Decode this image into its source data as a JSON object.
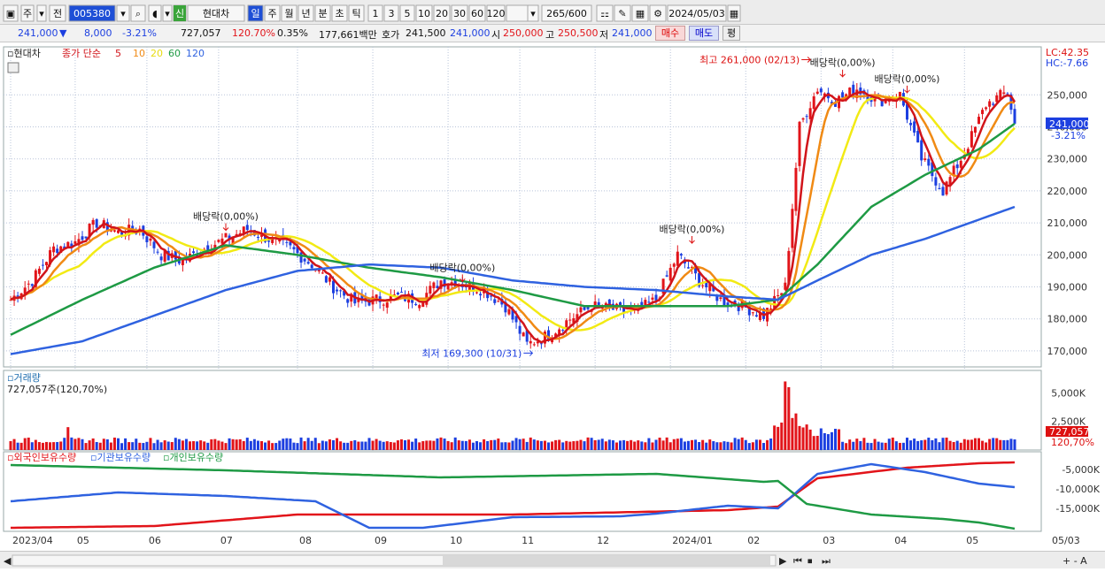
{
  "toolbar": {
    "mode": "주",
    "prev": "전",
    "code": "005380",
    "new_badge": "신",
    "name": "현대차",
    "periods": [
      {
        "label": "일",
        "selected": true
      },
      {
        "label": "주"
      },
      {
        "label": "월"
      },
      {
        "label": "년"
      },
      {
        "label": "분"
      },
      {
        "label": "초"
      },
      {
        "label": "틱"
      }
    ],
    "intervals": [
      "1",
      "3",
      "5",
      "10",
      "20",
      "30",
      "60",
      "120"
    ],
    "count": "265",
    "max_count": "/600",
    "date": "2024/05/03"
  },
  "quote": {
    "price": "241,000",
    "arrow": "▼",
    "change": "8,000",
    "change_pct": "-3.21%",
    "volume": "727,057",
    "volume_ratio": "120.70%",
    "turnover_pct": "0.35%",
    "amount": "177,661백만",
    "hoga_label": "호가",
    "ask": "241,500",
    "bid": "241,000",
    "open_label": "시",
    "open": "250,000",
    "high_label": "고",
    "high": "250,500",
    "low_label": "저",
    "low": "241,000",
    "buy_label": "매수",
    "sell_label": "매도",
    "avg_label": "평"
  },
  "colors": {
    "up": "#e2141a",
    "down": "#1c3fe0",
    "ma5": "#d1141a",
    "ma10": "#f08a14",
    "ma20": "#f2ea14",
    "ma60": "#1e9a44",
    "ma120": "#2f62e0",
    "foreign": "#e2141a",
    "inst": "#2f62e0",
    "indiv": "#1e9a44",
    "grid": "#b9c4d9"
  },
  "chart_data": [
    {
      "type": "candlestick",
      "title": "현대차",
      "legend": [
        {
          "name": "종가 단순",
          "color": "#d1141a"
        },
        {
          "name": "5",
          "color": "#d1141a"
        },
        {
          "name": "10",
          "color": "#f08a14"
        },
        {
          "name": "20",
          "color": "#e8dc10"
        },
        {
          "name": "60",
          "color": "#1e9a44"
        },
        {
          "name": "120",
          "color": "#2f62e0"
        }
      ],
      "x": [
        "2023/04",
        "05",
        "06",
        "07",
        "08",
        "09",
        "10",
        "11",
        "12",
        "2024/01",
        "02",
        "03",
        "04",
        "05",
        "05/03"
      ],
      "yticks": [
        170000,
        180000,
        190000,
        200000,
        210000,
        220000,
        230000,
        240000,
        250000
      ],
      "ytick_labels": [
        "170,000",
        "180,000",
        "190,000",
        "200,000",
        "210,000",
        "220,000",
        "230,000",
        "240,000",
        "250,000"
      ],
      "ylim": [
        165000,
        265000
      ],
      "lc": "LC:42.35",
      "hc": "HC:-7.66",
      "last_price": "241,000",
      "last_change": "-3.21%",
      "close_path": [
        [
          0,
          186000
        ],
        [
          6,
          192000
        ],
        [
          12,
          202000
        ],
        [
          18,
          204000
        ],
        [
          24,
          210000
        ],
        [
          30,
          207000
        ],
        [
          36,
          208000
        ],
        [
          42,
          200000
        ],
        [
          48,
          198000
        ],
        [
          54,
          202000
        ],
        [
          60,
          205000
        ],
        [
          66,
          208000
        ],
        [
          72,
          205000
        ],
        [
          78,
          202000
        ],
        [
          84,
          197000
        ],
        [
          90,
          190000
        ],
        [
          96,
          185000
        ],
        [
          102,
          186000
        ],
        [
          108,
          187000
        ],
        [
          114,
          186000
        ],
        [
          120,
          192000
        ],
        [
          126,
          191000
        ],
        [
          132,
          189000
        ],
        [
          138,
          184000
        ],
        [
          144,
          172000
        ],
        [
          150,
          175000
        ],
        [
          156,
          180000
        ],
        [
          162,
          184000
        ],
        [
          168,
          183000
        ],
        [
          174,
          182000
        ],
        [
          180,
          186000
        ],
        [
          186,
          200000
        ],
        [
          192,
          192000
        ],
        [
          198,
          186000
        ],
        [
          204,
          184000
        ],
        [
          210,
          181000
        ],
        [
          216,
          190000
        ],
        [
          220,
          240000
        ],
        [
          225,
          252000
        ],
        [
          230,
          248000
        ],
        [
          236,
          252000
        ],
        [
          242,
          248000
        ],
        [
          248,
          250000
        ],
        [
          254,
          230000
        ],
        [
          260,
          220000
        ],
        [
          266,
          232000
        ],
        [
          272,
          247000
        ],
        [
          278,
          251000
        ],
        [
          280,
          241000
        ]
      ],
      "ma60_path": [
        [
          0,
          175000
        ],
        [
          20,
          186000
        ],
        [
          40,
          196000
        ],
        [
          60,
          203000
        ],
        [
          80,
          200000
        ],
        [
          100,
          196000
        ],
        [
          120,
          193000
        ],
        [
          140,
          189000
        ],
        [
          160,
          184000
        ],
        [
          180,
          184000
        ],
        [
          200,
          184000
        ],
        [
          214,
          186000
        ],
        [
          225,
          197000
        ],
        [
          240,
          215000
        ],
        [
          255,
          225000
        ],
        [
          270,
          233000
        ],
        [
          280,
          241000
        ]
      ],
      "ma120_path": [
        [
          0,
          169000
        ],
        [
          20,
          173000
        ],
        [
          40,
          181000
        ],
        [
          60,
          189000
        ],
        [
          80,
          195000
        ],
        [
          100,
          197000
        ],
        [
          120,
          196000
        ],
        [
          140,
          192000
        ],
        [
          160,
          190000
        ],
        [
          180,
          189000
        ],
        [
          200,
          187000
        ],
        [
          214,
          186000
        ],
        [
          225,
          192000
        ],
        [
          240,
          200000
        ],
        [
          255,
          205000
        ],
        [
          270,
          211000
        ],
        [
          280,
          215000
        ]
      ],
      "annotations": [
        {
          "text": "배당락(0,00%)",
          "x": 60,
          "y": 211000
        },
        {
          "text": "배당락(0,00%)",
          "x": 126,
          "y": 195000
        },
        {
          "text": "배당락(0,00%)",
          "x": 190,
          "y": 207000
        },
        {
          "text": "배당락(0,00%)",
          "x": 232,
          "y": 259000
        },
        {
          "text": "배당락(0,00%)",
          "x": 250,
          "y": 254000
        }
      ],
      "max_label": "최고 261,000 (02/13)",
      "max": {
        "x": 224,
        "y": 261000
      },
      "min_label": "최저 169,300 (10/31)",
      "min": {
        "x": 147,
        "y": 169300
      }
    },
    {
      "type": "bar",
      "title": "거래량",
      "value_label": "727,057주(120,70%)",
      "yticks": [
        "2,500K",
        "5,000K"
      ],
      "ylim": [
        0,
        6500
      ],
      "last": "727,057",
      "last_pct": "120,70%",
      "spikes": [
        {
          "x": 216,
          "value": 6000
        },
        {
          "x": 217,
          "value": 5500
        },
        {
          "x": 218,
          "value": 2800
        },
        {
          "x": 219,
          "value": 3200
        },
        {
          "x": 16,
          "value": 2000
        }
      ],
      "base": 600
    },
    {
      "type": "line",
      "title": "외국인보유수량",
      "series": [
        {
          "name": "외국인보유수량"
        },
        {
          "name": "기관보유수량"
        },
        {
          "name": "개인보유수량"
        }
      ],
      "yticks": [
        "-5,000K",
        "-10,000K",
        "-15,000K"
      ]
    }
  ],
  "statusbar": {
    "date_right": "05/03",
    "zoom": "+ - A"
  }
}
